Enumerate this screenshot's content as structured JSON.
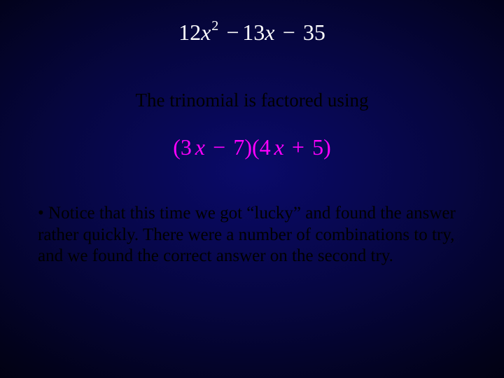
{
  "slide": {
    "background": {
      "gradient_center": "#0a0a6a",
      "gradient_mid": "#060640",
      "gradient_outer": "#02021a",
      "gradient_edge": "#000008"
    },
    "formula_top": {
      "coef1": "12",
      "var1": "x",
      "exp1": "2",
      "op1": "−",
      "coef2": "13",
      "var2": "x",
      "op2": "−",
      "const": "35",
      "color": "#fefefe",
      "fontsize": 32
    },
    "statement": {
      "text": "The trinomial is factored using",
      "color": "#000000",
      "fontsize": 27
    },
    "formula_mid": {
      "open1": "(3",
      "var1": "x",
      "op1": "−",
      "const1": "7)(4",
      "var2": "x",
      "op2": "+",
      "const2": "5)",
      "color": "#ff00ff",
      "fontsize": 32
    },
    "bullet": {
      "marker": "•",
      "text": " Notice that this time we got “lucky” and found the answer rather quickly.  There were a number of combinations to try, and we found the correct answer on the second try.",
      "color": "#000000",
      "fontsize": 25
    }
  }
}
